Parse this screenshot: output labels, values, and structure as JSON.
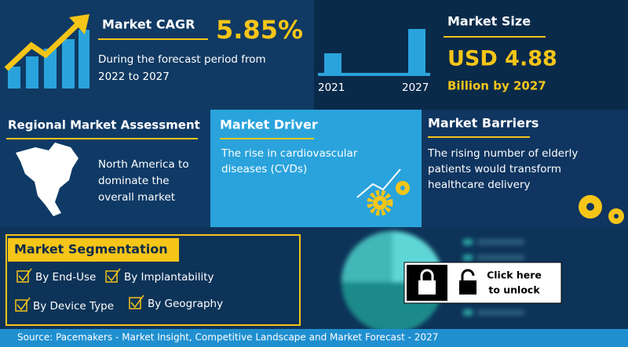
{
  "cagr": {
    "title": "Market CAGR",
    "value": "5.85%",
    "text": [
      "During the forecast period from",
      "2022 to 2027"
    ]
  },
  "market_size": {
    "title": "Market Size",
    "years": [
      "2021",
      "2027"
    ],
    "value": "USD 4.88",
    "unit": "Billion by 2027"
  },
  "regional": {
    "title": "Regional Market Assessment",
    "text": [
      "North America to",
      "dominate the",
      "overall market"
    ]
  },
  "driver": {
    "title": "Market Driver",
    "text": [
      "The rise in cardiovascular",
      "diseases (CVDs)"
    ]
  },
  "barriers": {
    "title": "Market Barriers",
    "text": [
      "The rising number of elderly",
      "patients would transform",
      "healthcare delivery"
    ]
  },
  "segmentation": {
    "title": "Market Segmentation",
    "items": [
      "By End-Use",
      "By Implantability",
      "By Device Type",
      "By Geography"
    ]
  },
  "unlock": {
    "text": [
      "Click here",
      "to unlock"
    ]
  },
  "source": "Source:  Pacemakers - Market Insight, Competitive Landscape and Market Forecast - 2027"
}
